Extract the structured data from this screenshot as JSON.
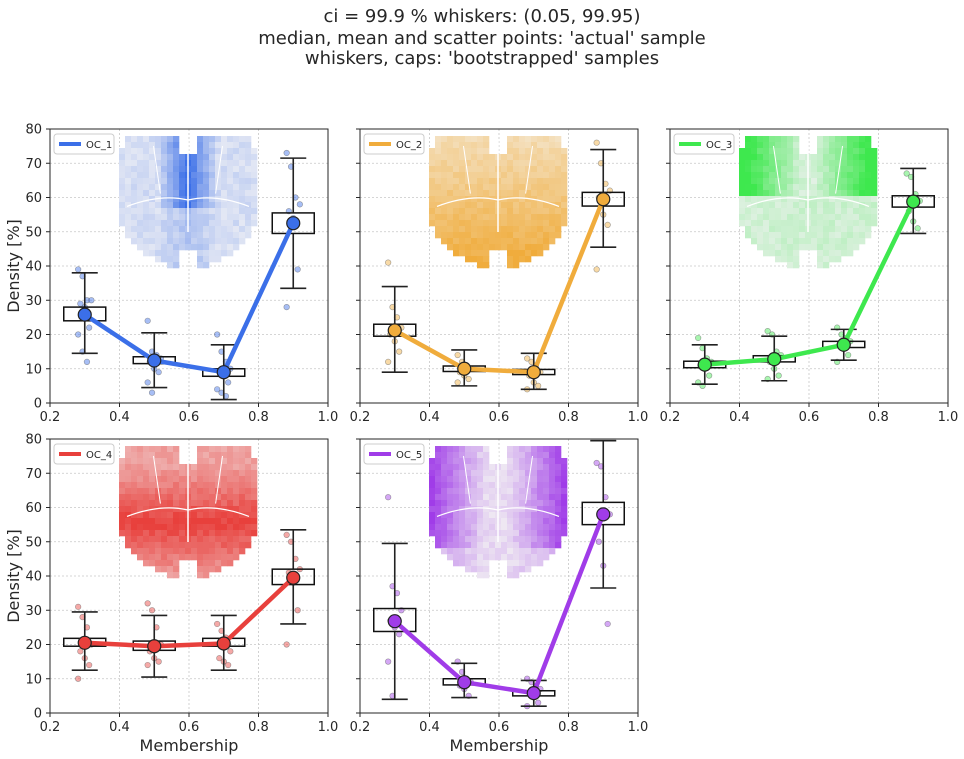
{
  "figure": {
    "title_lines": [
      "ci = 99.9 % whiskers: (0.05, 99.95)",
      "median, mean and scatter points: 'actual' sample",
      "whiskers, caps: 'bootstrapped' samples"
    ]
  },
  "chart_data": [
    {
      "type": "box",
      "legend": "OC_1",
      "legend_position": "top-left",
      "color": "#3b6fe8",
      "light_color": "#e4e8f4",
      "xlabel": "",
      "ylabel": "Density [%]",
      "xlim": [
        0.2,
        1.0
      ],
      "ylim": [
        0,
        80
      ],
      "xticks": [
        "0.2",
        "0.4",
        "0.6",
        "0.8",
        "1.0"
      ],
      "yticks": [
        "0",
        "10",
        "20",
        "30",
        "40",
        "50",
        "60",
        "70",
        "80"
      ],
      "grid": true,
      "x": [
        0.3,
        0.5,
        0.7,
        0.9
      ],
      "mean": [
        25.8,
        12.4,
        9.0,
        52.5
      ],
      "box_low": [
        24.0,
        11.5,
        7.8,
        49.5
      ],
      "box_high": [
        28.0,
        13.5,
        10.0,
        55.5
      ],
      "whisker_low": [
        14.5,
        4.5,
        1.0,
        33.5
      ],
      "whisker_high": [
        38.0,
        20.5,
        17.0,
        71.5
      ],
      "points": [
        [
          39,
          37,
          30,
          30,
          29,
          28,
          22,
          20,
          15,
          12
        ],
        [
          24,
          15,
          14,
          13,
          12,
          10,
          9,
          6,
          3
        ],
        [
          20,
          15,
          12,
          10,
          9,
          8,
          6,
          4,
          3,
          2
        ],
        [
          73,
          69,
          60,
          58,
          56,
          54,
          39,
          28
        ]
      ]
    },
    {
      "type": "box",
      "legend": "OC_2",
      "legend_position": "top-left",
      "color": "#f0ac3c",
      "light_color": "#f5efe4",
      "xlabel": "",
      "ylabel": "",
      "xlim": [
        0.2,
        1.0
      ],
      "ylim": [
        0,
        80
      ],
      "xticks": [
        "0.2",
        "0.4",
        "0.6",
        "0.8",
        "1.0"
      ],
      "yticks": [],
      "grid": true,
      "x": [
        0.3,
        0.5,
        0.7,
        0.9
      ],
      "mean": [
        21.2,
        10.0,
        9.0,
        59.5
      ],
      "box_low": [
        19.5,
        9.2,
        8.3,
        57.5
      ],
      "box_high": [
        23.0,
        10.8,
        9.8,
        61.5
      ],
      "whisker_low": [
        9.0,
        5.0,
        4.0,
        45.5
      ],
      "whisker_high": [
        34.0,
        15.5,
        14.5,
        74.0
      ],
      "points": [
        [
          41,
          28,
          25,
          22,
          20,
          18,
          15,
          12
        ],
        [
          14,
          12,
          11,
          10,
          9,
          8,
          7,
          6
        ],
        [
          13,
          12,
          11,
          9,
          8,
          6,
          5,
          4
        ],
        [
          76,
          70,
          64,
          62,
          60,
          55,
          52,
          39
        ]
      ]
    },
    {
      "type": "box",
      "legend": "OC_3",
      "legend_position": "top-left",
      "color": "#3ee84e",
      "light_color": "#e4f1e6",
      "xlabel": "",
      "ylabel": "",
      "xlim": [
        0.2,
        1.0
      ],
      "ylim": [
        0,
        80
      ],
      "xticks": [
        "0.2",
        "0.4",
        "0.6",
        "0.8",
        "1.0"
      ],
      "yticks": [],
      "grid": true,
      "x": [
        0.3,
        0.5,
        0.7,
        0.9
      ],
      "mean": [
        11.2,
        12.8,
        17.0,
        58.8
      ],
      "box_low": [
        10.3,
        12.0,
        16.2,
        57.2
      ],
      "box_high": [
        12.2,
        13.8,
        18.0,
        60.5
      ],
      "whisker_low": [
        5.5,
        6.5,
        12.5,
        49.5
      ],
      "whisker_high": [
        17.0,
        19.5,
        21.5,
        68.5
      ],
      "points": [
        [
          19,
          16,
          13,
          12,
          11,
          10,
          8,
          6,
          5
        ],
        [
          21,
          20,
          15,
          14,
          12,
          10,
          8,
          7
        ],
        [
          22,
          20,
          19,
          18,
          17,
          16,
          14,
          12
        ],
        [
          67,
          66,
          61,
          59,
          56,
          53,
          51
        ]
      ]
    },
    {
      "type": "box",
      "legend": "OC_4",
      "legend_position": "top-left",
      "color": "#e8403c",
      "light_color": "#f2e4e4",
      "xlabel": "Membership",
      "ylabel": "Density [%]",
      "xlim": [
        0.2,
        1.0
      ],
      "ylim": [
        0,
        80
      ],
      "xticks": [
        "0.2",
        "0.4",
        "0.6",
        "0.8",
        "1.0"
      ],
      "yticks": [
        "0",
        "10",
        "20",
        "30",
        "40",
        "50",
        "60",
        "70",
        "80"
      ],
      "grid": true,
      "x": [
        0.3,
        0.5,
        0.7,
        0.9
      ],
      "mean": [
        20.5,
        19.5,
        20.3,
        39.5
      ],
      "box_low": [
        19.5,
        18.3,
        19.5,
        37.5
      ],
      "box_high": [
        21.8,
        21.0,
        21.8,
        42.0
      ],
      "whisker_low": [
        12.5,
        10.5,
        12.5,
        26.0
      ],
      "whisker_high": [
        29.5,
        28.5,
        28.5,
        53.5
      ],
      "points": [
        [
          31,
          28,
          25,
          20,
          18,
          16,
          14,
          10
        ],
        [
          32,
          30,
          25,
          20,
          18,
          16,
          15,
          14
        ],
        [
          26,
          24,
          22,
          18,
          16,
          15,
          14
        ],
        [
          52,
          50,
          45,
          42,
          41,
          38,
          30,
          20
        ]
      ]
    },
    {
      "type": "box",
      "legend": "OC_5",
      "legend_position": "top-left",
      "color": "#a03ce8",
      "light_color": "#eee8f2",
      "xlabel": "Membership",
      "ylabel": "",
      "xlim": [
        0.2,
        1.0
      ],
      "ylim": [
        0,
        80
      ],
      "xticks": [
        "0.2",
        "0.4",
        "0.6",
        "0.8",
        "1.0"
      ],
      "yticks": [],
      "grid": true,
      "x": [
        0.3,
        0.5,
        0.7,
        0.9
      ],
      "mean": [
        26.8,
        9.0,
        5.8,
        58.0
      ],
      "box_low": [
        23.8,
        8.2,
        5.0,
        55.0
      ],
      "box_high": [
        30.5,
        10.0,
        6.5,
        61.5
      ],
      "whisker_low": [
        4.0,
        4.5,
        2.0,
        36.5
      ],
      "whisker_high": [
        49.5,
        14.5,
        9.5,
        79.5
      ],
      "points": [
        [
          63,
          37,
          35,
          30,
          27,
          25,
          23,
          15,
          5
        ],
        [
          15,
          12,
          10,
          9,
          8,
          7,
          5
        ],
        [
          10,
          9,
          8,
          7,
          6,
          5,
          3,
          2
        ],
        [
          73,
          72,
          63,
          58,
          50,
          43,
          26
        ]
      ]
    }
  ]
}
